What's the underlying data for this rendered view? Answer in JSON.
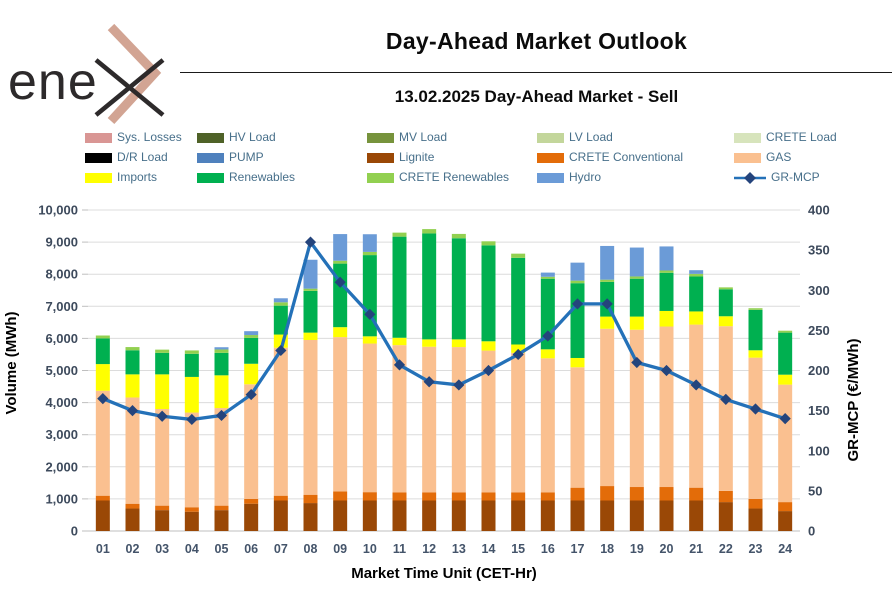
{
  "logo": {
    "text": "ene",
    "brand_colors": {
      "text": "#2D2A2B",
      "chevron": "#D2A493"
    }
  },
  "header": {
    "title": "Day-Ahead Market Outlook",
    "subtitle": "13.02.2025  Day-Ahead Market - Sell"
  },
  "legend": {
    "items": [
      {
        "label": "Sys. Losses",
        "color": "#D99694",
        "kind": "swatch"
      },
      {
        "label": "HV Load",
        "color": "#4F6228",
        "kind": "swatch"
      },
      {
        "label": "MV Load",
        "color": "#77933C",
        "kind": "swatch"
      },
      {
        "label": "LV Load",
        "color": "#C3D69B",
        "kind": "swatch"
      },
      {
        "label": "CRETE Load",
        "color": "#D7E4BC",
        "kind": "swatch"
      },
      {
        "label": "D/R Load",
        "color": "#000000",
        "kind": "swatch"
      },
      {
        "label": "PUMP",
        "color": "#4F81BD",
        "kind": "swatch"
      },
      {
        "label": "Lignite",
        "color": "#9A4806",
        "kind": "swatch"
      },
      {
        "label": "CRETE Conventional",
        "color": "#E36C09",
        "kind": "swatch"
      },
      {
        "label": "GAS",
        "color": "#FAC090",
        "kind": "swatch"
      },
      {
        "label": "Imports",
        "color": "#FFFF00",
        "kind": "swatch"
      },
      {
        "label": "Renewables",
        "color": "#00B050",
        "kind": "swatch"
      },
      {
        "label": "CRETE Renewables",
        "color": "#92D050",
        "kind": "swatch"
      },
      {
        "label": "Hydro",
        "color": "#6B9BD7",
        "kind": "swatch"
      },
      {
        "label": "GR-MCP",
        "color": "#2471B8",
        "marker_color": "#24447C",
        "kind": "line"
      }
    ]
  },
  "chart_data": {
    "type": "bar",
    "stacked": true,
    "grid": true,
    "legend_position": "top",
    "categories": [
      "01",
      "02",
      "03",
      "04",
      "05",
      "06",
      "07",
      "08",
      "09",
      "10",
      "11",
      "12",
      "13",
      "14",
      "15",
      "16",
      "17",
      "18",
      "19",
      "20",
      "21",
      "22",
      "23",
      "24"
    ],
    "series": [
      {
        "name": "Lignite",
        "color": "#9A4806",
        "values": [
          950,
          700,
          650,
          600,
          650,
          850,
          950,
          870,
          950,
          950,
          950,
          950,
          950,
          950,
          950,
          950,
          950,
          950,
          950,
          950,
          950,
          900,
          700,
          620
        ]
      },
      {
        "name": "CRETE Conventional",
        "color": "#E36C09",
        "values": [
          150,
          150,
          140,
          140,
          140,
          150,
          150,
          260,
          280,
          260,
          250,
          250,
          250,
          250,
          250,
          250,
          400,
          450,
          420,
          420,
          400,
          350,
          300,
          280
        ]
      },
      {
        "name": "GAS",
        "color": "#FAC090",
        "values": [
          3270,
          3310,
          3010,
          2950,
          3040,
          3570,
          4610,
          4820,
          4810,
          4630,
          4590,
          4540,
          4530,
          4420,
          4350,
          4180,
          3750,
          4900,
          4900,
          5000,
          5080,
          5130,
          4400,
          3660
        ]
      },
      {
        "name": "Imports",
        "color": "#FFFF00",
        "values": [
          830,
          720,
          1080,
          1110,
          1020,
          640,
          410,
          230,
          310,
          225,
          230,
          230,
          240,
          290,
          260,
          280,
          290,
          380,
          410,
          485,
          410,
          310,
          230,
          310
        ]
      },
      {
        "name": "Renewables",
        "color": "#00B050",
        "values": [
          800,
          750,
          670,
          720,
          700,
          805,
          900,
          1300,
          1980,
          2530,
          3150,
          3300,
          3150,
          2990,
          2700,
          2200,
          2330,
          1080,
          1180,
          1190,
          1090,
          840,
          1260,
          1310
        ]
      },
      {
        "name": "CRETE Renewables",
        "color": "#92D050",
        "values": [
          90,
          100,
          100,
          105,
          105,
          90,
          105,
          70,
          90,
          100,
          125,
          135,
          135,
          125,
          130,
          60,
          80,
          70,
          70,
          70,
          80,
          60,
          50,
          60
        ]
      },
      {
        "name": "Hydro",
        "color": "#6B9BD7",
        "values": [
          0,
          0,
          0,
          0,
          70,
          120,
          125,
          900,
          830,
          550,
          0,
          0,
          0,
          0,
          0,
          130,
          560,
          1050,
          900,
          750,
          115,
          0,
          0,
          0
        ]
      }
    ],
    "line_series": {
      "name": "GR-MCP",
      "axis": "right",
      "color": "#2471B8",
      "marker_color": "#24447C",
      "values": [
        165,
        150,
        143,
        139,
        144,
        170,
        225,
        360,
        310,
        270,
        207,
        186,
        182,
        200,
        220,
        243,
        283,
        283,
        210,
        200,
        182,
        164,
        152,
        140
      ]
    },
    "xlabel": "Market Time Unit (CET-Hr)",
    "ylabel_left": "Volume (MWh)",
    "ylabel_right": "GR-MCP (€/MWh)",
    "ylim_left": [
      0,
      10000
    ],
    "ytick_step_left": 1000,
    "ylim_right": [
      0,
      400
    ],
    "ytick_step_right": 50
  }
}
